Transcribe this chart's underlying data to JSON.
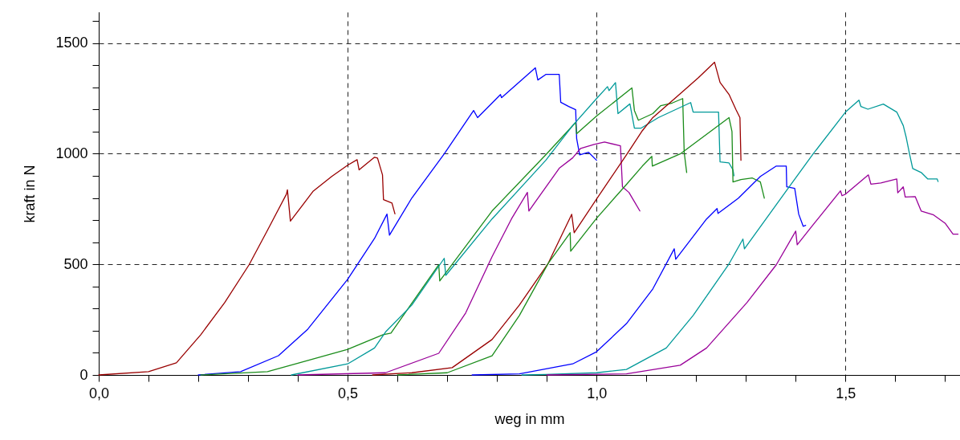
{
  "chart_data": {
    "type": "line",
    "xlabel": "weg in mm",
    "ylabel": "kraft in N",
    "xlim": [
      0,
      1.73
    ],
    "ylim": [
      0,
      1640
    ],
    "xticks": [
      {
        "value": 0,
        "label": "0,0"
      },
      {
        "value": 0.1,
        "label": null
      },
      {
        "value": 0.2,
        "label": null
      },
      {
        "value": 0.3,
        "label": null
      },
      {
        "value": 0.4,
        "label": null
      },
      {
        "value": 0.5,
        "label": "0,5"
      },
      {
        "value": 0.6,
        "label": null
      },
      {
        "value": 0.7,
        "label": null
      },
      {
        "value": 0.8,
        "label": null
      },
      {
        "value": 0.9,
        "label": null
      },
      {
        "value": 1.0,
        "label": "1,0"
      },
      {
        "value": 1.1,
        "label": null
      },
      {
        "value": 1.2,
        "label": null
      },
      {
        "value": 1.3,
        "label": null
      },
      {
        "value": 1.4,
        "label": null
      },
      {
        "value": 1.5,
        "label": "1,5"
      },
      {
        "value": 1.6,
        "label": null
      },
      {
        "value": 1.7,
        "label": null
      }
    ],
    "yticks": [
      0,
      {
        "value": 100,
        "label": null
      },
      {
        "value": 200,
        "label": null
      },
      {
        "value": 300,
        "label": null
      },
      {
        "value": 400,
        "label": null
      },
      500,
      {
        "value": 600,
        "label": null
      },
      {
        "value": 700,
        "label": null
      },
      {
        "value": 800,
        "label": null
      },
      {
        "value": 900,
        "label": null
      },
      1000,
      {
        "value": 1100,
        "label": null
      },
      {
        "value": 1200,
        "label": null
      },
      {
        "value": 1300,
        "label": null
      },
      {
        "value": 1400,
        "label": null
      },
      1500,
      {
        "value": 1600,
        "label": null
      }
    ],
    "grid": true,
    "line_style": "solid",
    "marker": "none",
    "series": [
      {
        "color": "#990000",
        "x": [
          0,
          0.1,
          0.156,
          0.205,
          0.253,
          0.302,
          0.339,
          0.377,
          0.379,
          0.385,
          0.431,
          0.468,
          0.5,
          0.519,
          0.523,
          0.554,
          0.56,
          0.57,
          0.572,
          0.589,
          0.595
        ],
        "values": [
          0,
          15,
          55,
          182,
          327,
          498,
          654,
          817,
          837,
          695,
          831,
          897,
          948,
          973,
          927,
          984,
          980,
          904,
          792,
          777,
          728
        ]
      },
      {
        "color": "#0000ff",
        "x": [
          0.2,
          0.285,
          0.361,
          0.42,
          0.5,
          0.554,
          0.579,
          0.584,
          0.629,
          0.694,
          0.753,
          0.761,
          0.807,
          0.809,
          0.877,
          0.882,
          0.898,
          0.925,
          0.928,
          0.944,
          0.958,
          0.96,
          0.966,
          0.984,
          1.0
        ],
        "values": [
          0,
          15,
          87,
          207,
          432,
          617,
          727,
          632,
          800,
          999,
          1195,
          1163,
          1267,
          1253,
          1388,
          1333,
          1358,
          1358,
          1232,
          1213,
          1199,
          1068,
          995,
          1006,
          970
        ]
      },
      {
        "color": "#1a8c1a",
        "x": [
          0.205,
          0.339,
          0.403,
          0.5,
          0.571,
          0.587,
          0.683,
          0.685,
          0.79,
          0.898,
          0.958,
          0.96,
          1.0,
          1.071,
          1.076,
          1.084,
          1.113,
          1.129,
          1.152,
          1.173,
          1.176,
          1.181
        ],
        "values": [
          0,
          15,
          55,
          116,
          182,
          189,
          498,
          425,
          741,
          995,
          1141,
          1090,
          1170,
          1297,
          1195,
          1151,
          1181,
          1217,
          1229,
          1249,
          1006,
          915
        ]
      },
      {
        "color": "#009999",
        "x": [
          0.387,
          0.5,
          0.554,
          0.576,
          0.629,
          0.694,
          0.697,
          0.79,
          0.898,
          0.952,
          1.0,
          1.022,
          1.025,
          1.038,
          1.043,
          1.067,
          1.076,
          1.089,
          1.124,
          1.189,
          1.194,
          1.245,
          1.248,
          1.266,
          1.274,
          1.276
        ],
        "values": [
          0,
          50,
          122,
          194,
          316,
          527,
          450,
          705,
          970,
          1127,
          1249,
          1303,
          1285,
          1321,
          1181,
          1225,
          1115,
          1115,
          1163,
          1231,
          1188,
          1188,
          963,
          958,
          927,
          900
        ]
      },
      {
        "color": "#990099",
        "x": [
          0.4,
          0.576,
          0.683,
          0.737,
          0.79,
          0.829,
          0.861,
          0.864,
          0.925,
          0.952,
          0.968,
          0.995,
          1.016,
          1.048,
          1.052,
          1.065,
          1.087
        ],
        "values": [
          0,
          10,
          98,
          280,
          534,
          705,
          825,
          741,
          934,
          981,
          1024,
          1042,
          1053,
          1035,
          850,
          825,
          741
        ]
      },
      {
        "color": "#990000",
        "x": [
          0.55,
          0.629,
          0.71,
          0.79,
          0.845,
          0.903,
          0.95,
          0.955,
          1.0,
          1.06,
          1.092,
          1.113,
          1.168,
          1.205,
          1.237,
          1.248,
          1.266,
          1.28,
          1.288,
          1.29
        ],
        "values": [
          0,
          10,
          33,
          160,
          316,
          505,
          726,
          643,
          795,
          995,
          1104,
          1163,
          1271,
          1344,
          1413,
          1322,
          1268,
          1199,
          1163,
          970
        ]
      },
      {
        "color": "#1a8c1a",
        "x": [
          0.6,
          0.7,
          0.79,
          0.845,
          0.903,
          0.947,
          0.948,
          1.0,
          1.06,
          1.092,
          1.111,
          1.112,
          1.168,
          1.266,
          1.272,
          1.274,
          1.29,
          1.313,
          1.329,
          1.337
        ],
        "values": [
          0,
          10,
          87,
          269,
          505,
          643,
          559,
          708,
          861,
          944,
          988,
          944,
          999,
          1163,
          1100,
          872,
          883,
          890,
          872,
          799
        ]
      },
      {
        "color": "#0000ff",
        "x": [
          0.75,
          0.845,
          0.952,
          1.0,
          1.06,
          1.113,
          1.156,
          1.159,
          1.221,
          1.242,
          1.244,
          1.285,
          1.329,
          1.361,
          1.381,
          1.382,
          1.398,
          1.406,
          1.415,
          1.42
        ],
        "values": [
          0,
          5,
          50,
          105,
          232,
          389,
          570,
          523,
          705,
          752,
          730,
          799,
          897,
          944,
          944,
          850,
          843,
          727,
          672,
          676
        ]
      },
      {
        "color": "#009999",
        "x": [
          0.85,
          0.898,
          1.0,
          1.06,
          1.14,
          1.194,
          1.265,
          1.294,
          1.297,
          1.382,
          1.435,
          1.5,
          1.527,
          1.531,
          1.545,
          1.576,
          1.603,
          1.616,
          1.622,
          1.629,
          1.635,
          1.652,
          1.665,
          1.684,
          1.686
        ],
        "values": [
          0,
          2,
          10,
          25,
          122,
          269,
          498,
          614,
          570,
          835,
          999,
          1188,
          1242,
          1213,
          1201,
          1224,
          1188,
          1127,
          1073,
          995,
          933,
          915,
          886,
          886,
          874
        ]
      },
      {
        "color": "#990099",
        "x": [
          0.9,
          1.06,
          1.168,
          1.221,
          1.302,
          1.361,
          1.4,
          1.403,
          1.435,
          1.49,
          1.493,
          1.5,
          1.546,
          1.551,
          1.571,
          1.603,
          1.605,
          1.616,
          1.62,
          1.64,
          1.652,
          1.677,
          1.7,
          1.716,
          1.726
        ],
        "values": [
          0,
          5,
          44,
          122,
          327,
          498,
          650,
          588,
          679,
          832,
          810,
          817,
          904,
          862,
          868,
          886,
          823,
          850,
          804,
          806,
          741,
          723,
          686,
          636,
          636
        ]
      }
    ]
  }
}
